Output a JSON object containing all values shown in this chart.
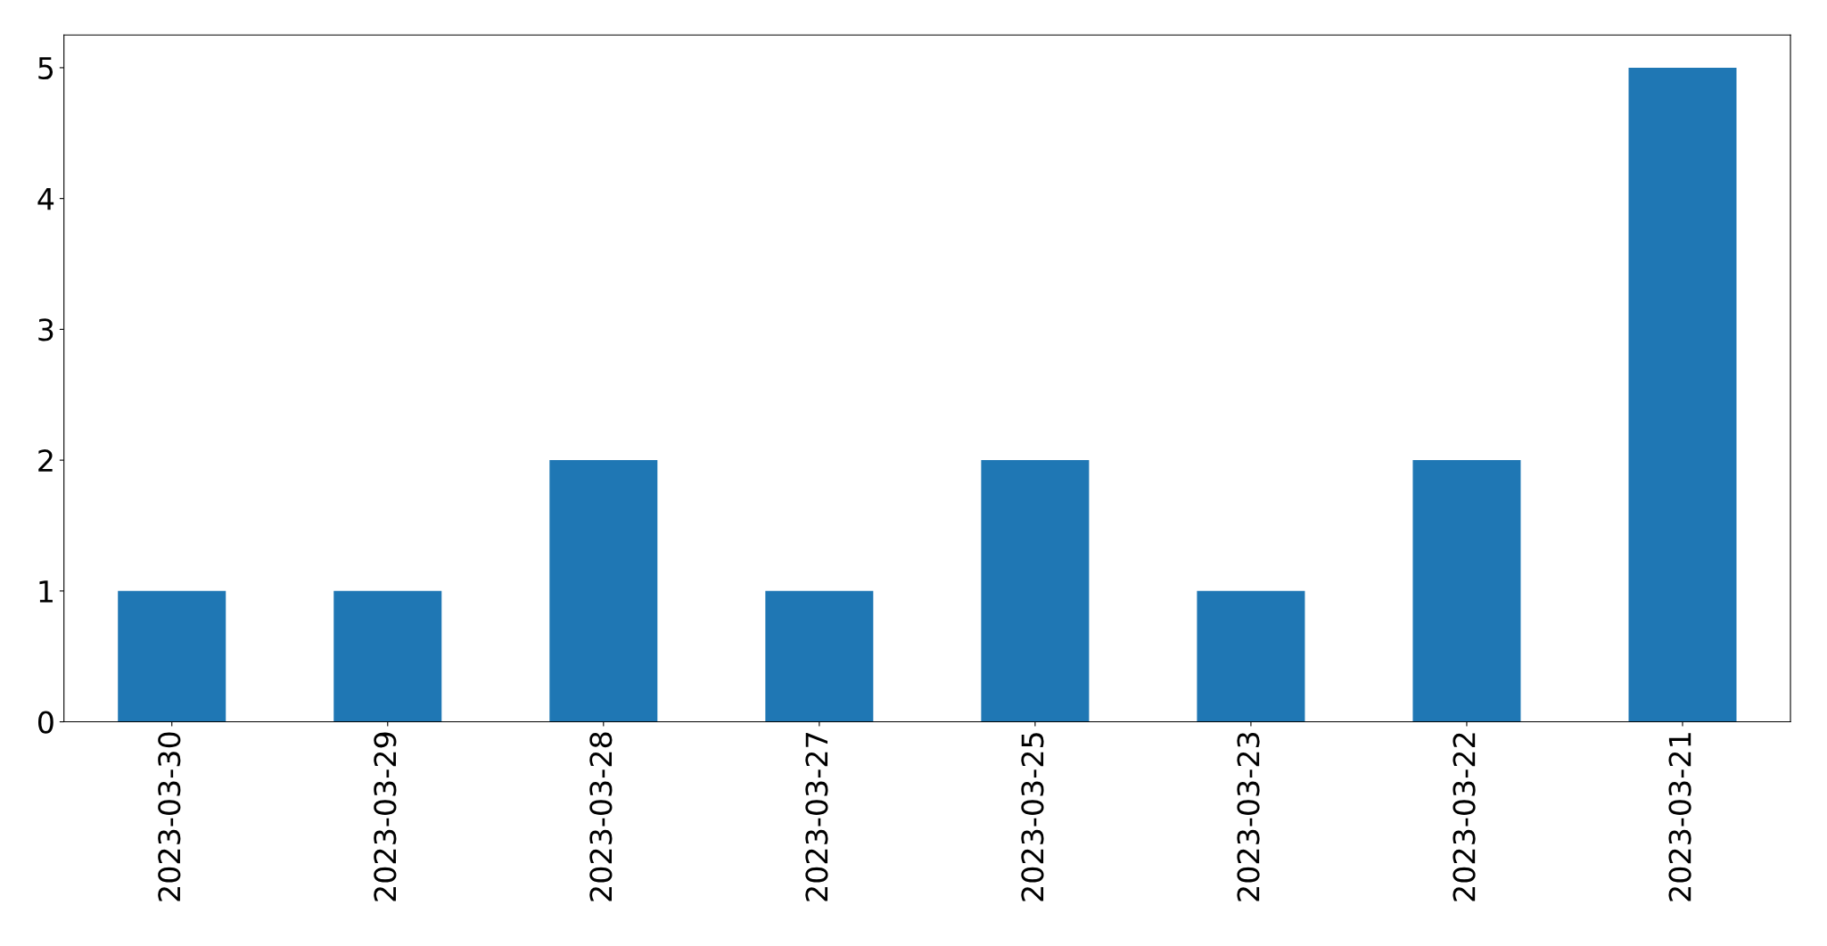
{
  "chart_data": {
    "type": "bar",
    "categories": [
      "2023-03-30",
      "2023-03-29",
      "2023-03-28",
      "2023-03-27",
      "2023-03-25",
      "2023-03-23",
      "2023-03-22",
      "2023-03-21"
    ],
    "values": [
      1,
      1,
      2,
      1,
      2,
      1,
      2,
      5
    ],
    "color": "#1f77b4",
    "ylim": [
      0,
      5.25
    ],
    "yticks": [
      0,
      1,
      2,
      3,
      4,
      5
    ],
    "grid": false,
    "legend": false
  }
}
